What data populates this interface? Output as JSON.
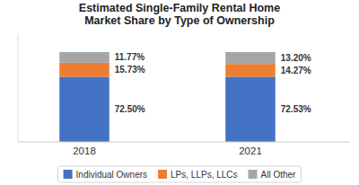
{
  "chart_data": {
    "type": "bar",
    "stacked": true,
    "title": "Estimated Single-Family Rental Home\nMarket Share by Type of Ownership",
    "categories": [
      "2018",
      "2021"
    ],
    "series": [
      {
        "name": "Individual Owners",
        "color": "#4472C4",
        "values": [
          72.5,
          72.53
        ],
        "value_labels": [
          "72.50%",
          "72.53%"
        ]
      },
      {
        "name": "LPs, LLPs, LLCs",
        "color": "#ED7D31",
        "values": [
          15.73,
          14.27
        ],
        "value_labels": [
          "15.73%",
          "14.27%"
        ]
      },
      {
        "name": "All Other",
        "color": "#A5A5A5",
        "values": [
          11.77,
          13.2
        ],
        "value_labels": [
          "11.77%",
          "13.20%"
        ]
      }
    ],
    "ylim": [
      0,
      120
    ],
    "tick_labels": "x",
    "data_labels": true,
    "grid": false,
    "legend": "bottom"
  }
}
